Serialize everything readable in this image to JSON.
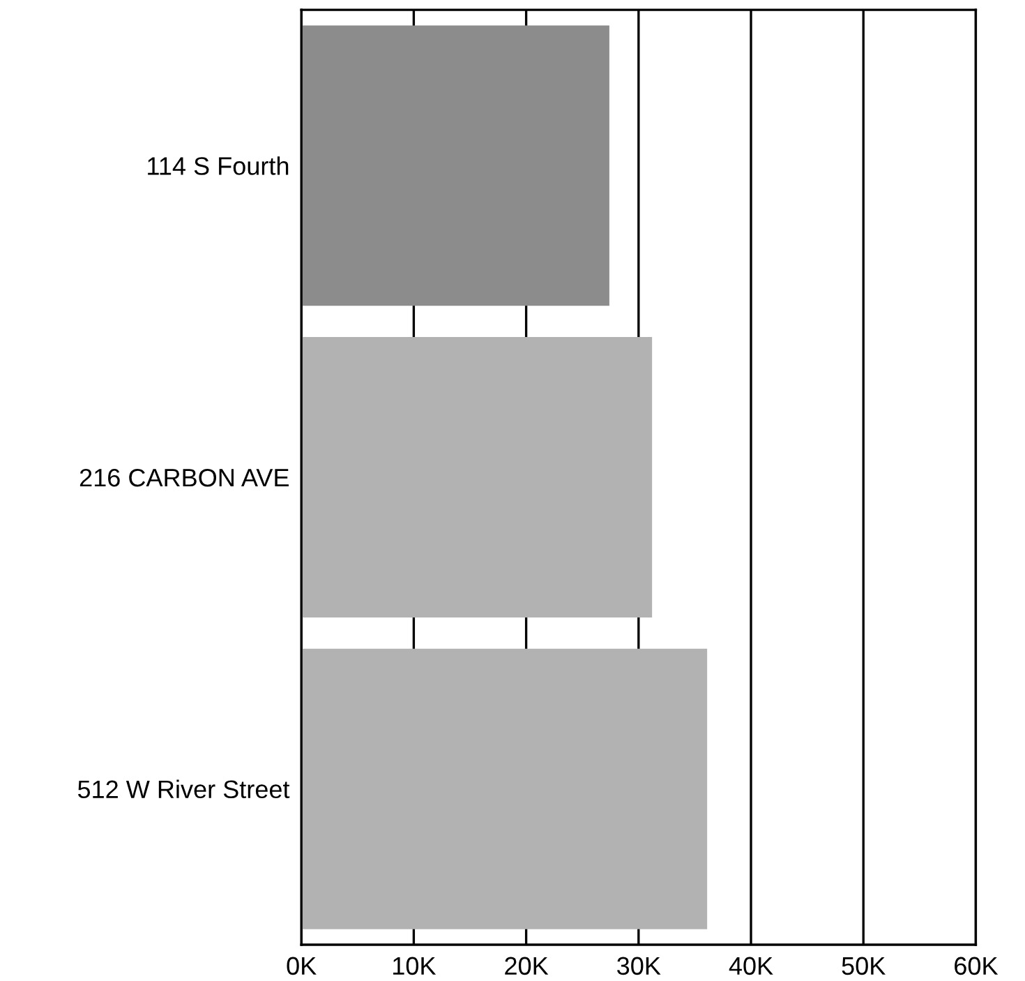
{
  "chart_data": {
    "type": "bar",
    "orientation": "horizontal",
    "categories": [
      "114 S Fourth",
      "216 CARBON AVE",
      "512 W River Street"
    ],
    "values": [
      27.4,
      31.2,
      36.1
    ],
    "colors": [
      "#8c8c8c",
      "#b2b2b2",
      "#b2b2b2"
    ],
    "xlim": [
      0,
      60
    ],
    "xticks": [
      {
        "value": 0,
        "label": "0K"
      },
      {
        "value": 10,
        "label": "10K"
      },
      {
        "value": 20,
        "label": "20K"
      },
      {
        "value": 30,
        "label": "30K"
      },
      {
        "value": 40,
        "label": "40K"
      },
      {
        "value": 50,
        "label": "50K"
      },
      {
        "value": 60,
        "label": "60K"
      }
    ],
    "grid": "x"
  }
}
